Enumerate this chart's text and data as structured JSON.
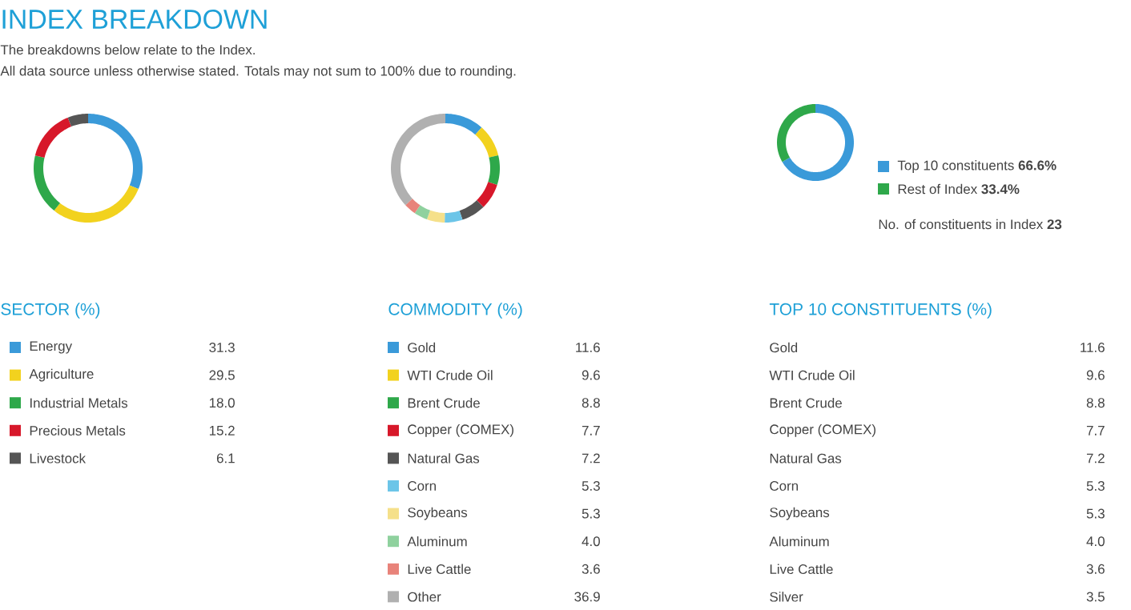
{
  "chart_data": [
    {
      "type": "other",
      "title": "INDEX BREAKDOWN",
      "subtitle": "The breakdowns below relate to the Index.",
      "annotations": [
        "All data source unless otherwise stated. Totals may not sum to 100% due to rounding."
      ]
    },
    {
      "type": "donut",
      "title": "SECTOR (%)",
      "categories": [
        "Energy",
        "Agriculture",
        "Industrial Metals",
        "Precious Metals",
        "Livestock"
      ],
      "values": [
        31.3,
        29.5,
        18.0,
        15.2,
        6.1
      ],
      "value_labels": [
        "31.3",
        "29.5",
        "18.0",
        "15.2",
        "6.1"
      ],
      "colors": [
        "#3a9ad9",
        "#f2d21e",
        "#2ea84a",
        "#d7182a",
        "#555555"
      ],
      "legend": "bottom"
    },
    {
      "type": "donut",
      "title": "COMMODITY (%)",
      "categories": [
        "Gold",
        "WTI Crude Oil",
        "Brent Crude",
        "Copper (COMEX)",
        "Natural Gas",
        "Corn",
        "Soybeans",
        "Aluminum",
        "Live Cattle",
        "Other"
      ],
      "values": [
        11.6,
        9.6,
        8.8,
        7.7,
        7.2,
        5.3,
        5.3,
        4.0,
        3.6,
        36.9
      ],
      "value_labels": [
        "11.6",
        "9.6",
        "8.8",
        "7.7",
        "7.2",
        "5.3",
        "5.3",
        "4.0",
        "3.6",
        "36.9"
      ],
      "colors": [
        "#3a9ad9",
        "#f2d21e",
        "#2ea84a",
        "#d7182a",
        "#555555",
        "#6cc5e8",
        "#f5e08a",
        "#8fd19e",
        "#e8837a",
        "#b0b0b0"
      ],
      "legend": "bottom"
    },
    {
      "type": "donut",
      "categories": [
        "Top 10 constituents",
        "Rest of Index"
      ],
      "values": [
        66.6,
        33.4
      ],
      "value_labels": [
        "66.6%",
        "33.4%"
      ],
      "colors": [
        "#3a9ad9",
        "#2ea84a"
      ],
      "legend": "right",
      "annotations": [
        "No. of constituents in Index **23**"
      ]
    },
    {
      "type": "other",
      "title": "TOP 10 CONSTITUENTS (%)",
      "categories": [
        "Gold",
        "WTI Crude Oil",
        "Brent Crude",
        "Copper (COMEX)",
        "Natural Gas",
        "Corn",
        "Soybeans",
        "Aluminum",
        "Live Cattle",
        "Silver"
      ],
      "value_labels": [
        "11.6",
        "9.6",
        "8.8",
        "7.7",
        "7.2",
        "5.3",
        "5.3",
        "4.0",
        "3.6",
        "3.5"
      ]
    }
  ]
}
